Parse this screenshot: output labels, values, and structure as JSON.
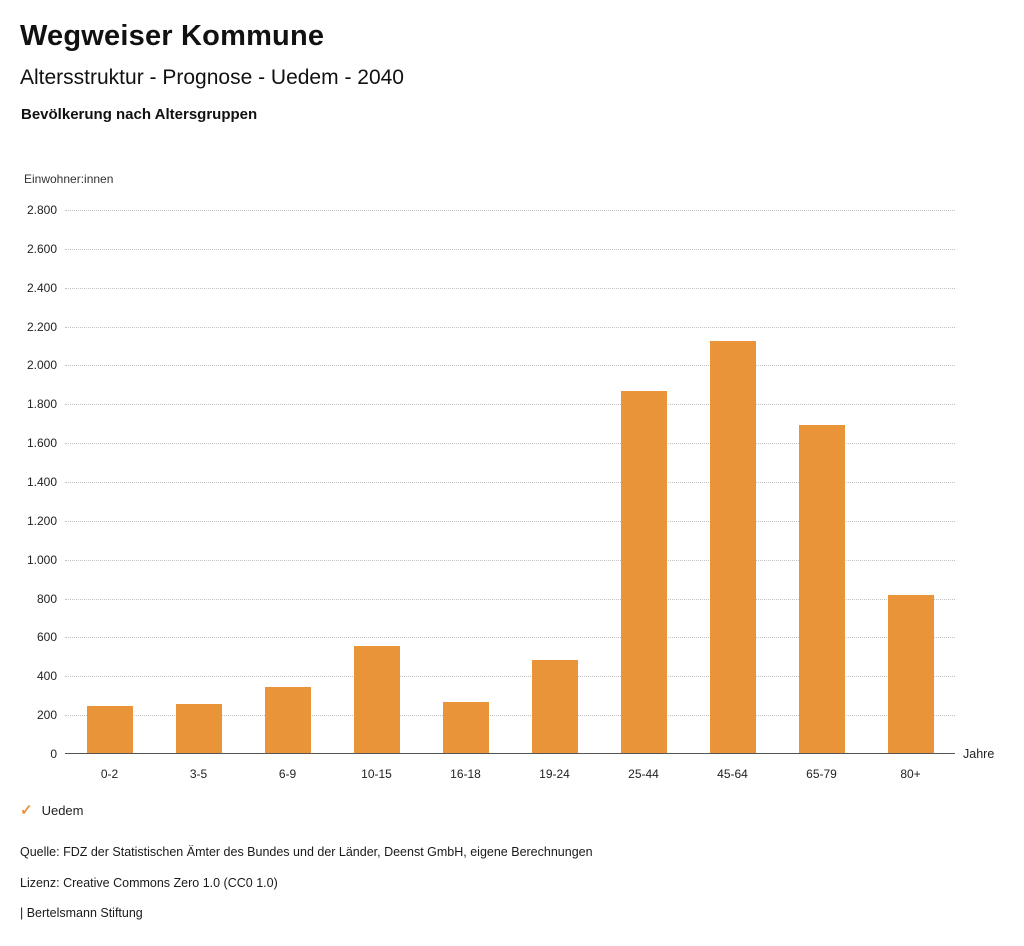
{
  "header": {
    "title": "Wegweiser Kommune",
    "subtitle": "Altersstruktur - Prognose - Uedem - 2040",
    "section_title": "Bevölkerung nach Altersgruppen"
  },
  "chart_data": {
    "type": "bar",
    "title": "Bevölkerung nach Altersgruppen",
    "xlabel": "Jahre",
    "ylabel": "Einwohner:innen",
    "categories": [
      "0-2",
      "3-5",
      "6-9",
      "10-15",
      "16-18",
      "19-24",
      "25-44",
      "45-64",
      "65-79",
      "80+"
    ],
    "series": [
      {
        "name": "Uedem",
        "values": [
          240,
          250,
          340,
          550,
          265,
          480,
          1865,
          2120,
          1690,
          815
        ]
      }
    ],
    "ylim": [
      0,
      2800
    ],
    "ytick_step": 200,
    "ytick_labels": [
      "0",
      "200",
      "400",
      "600",
      "800",
      "1.000",
      "1.200",
      "1.400",
      "1.600",
      "1.800",
      "2.000",
      "2.200",
      "2.400",
      "2.600",
      "2.800"
    ],
    "grid": true,
    "gridline_style": "dotted",
    "bar_color": "#EA9439",
    "legend_position": "bottom-left"
  },
  "legend": {
    "items": [
      {
        "label": "Uedem",
        "color": "#EA9439",
        "icon": "check"
      }
    ]
  },
  "footer": {
    "source": "Quelle: FDZ der Statistischen Ämter des Bundes und der Länder, Deenst GmbH, eigene Berechnungen",
    "license": "Lizenz: Creative Commons Zero 1.0 (CC0 1.0)",
    "attribution": "| Bertelsmann Stiftung"
  }
}
